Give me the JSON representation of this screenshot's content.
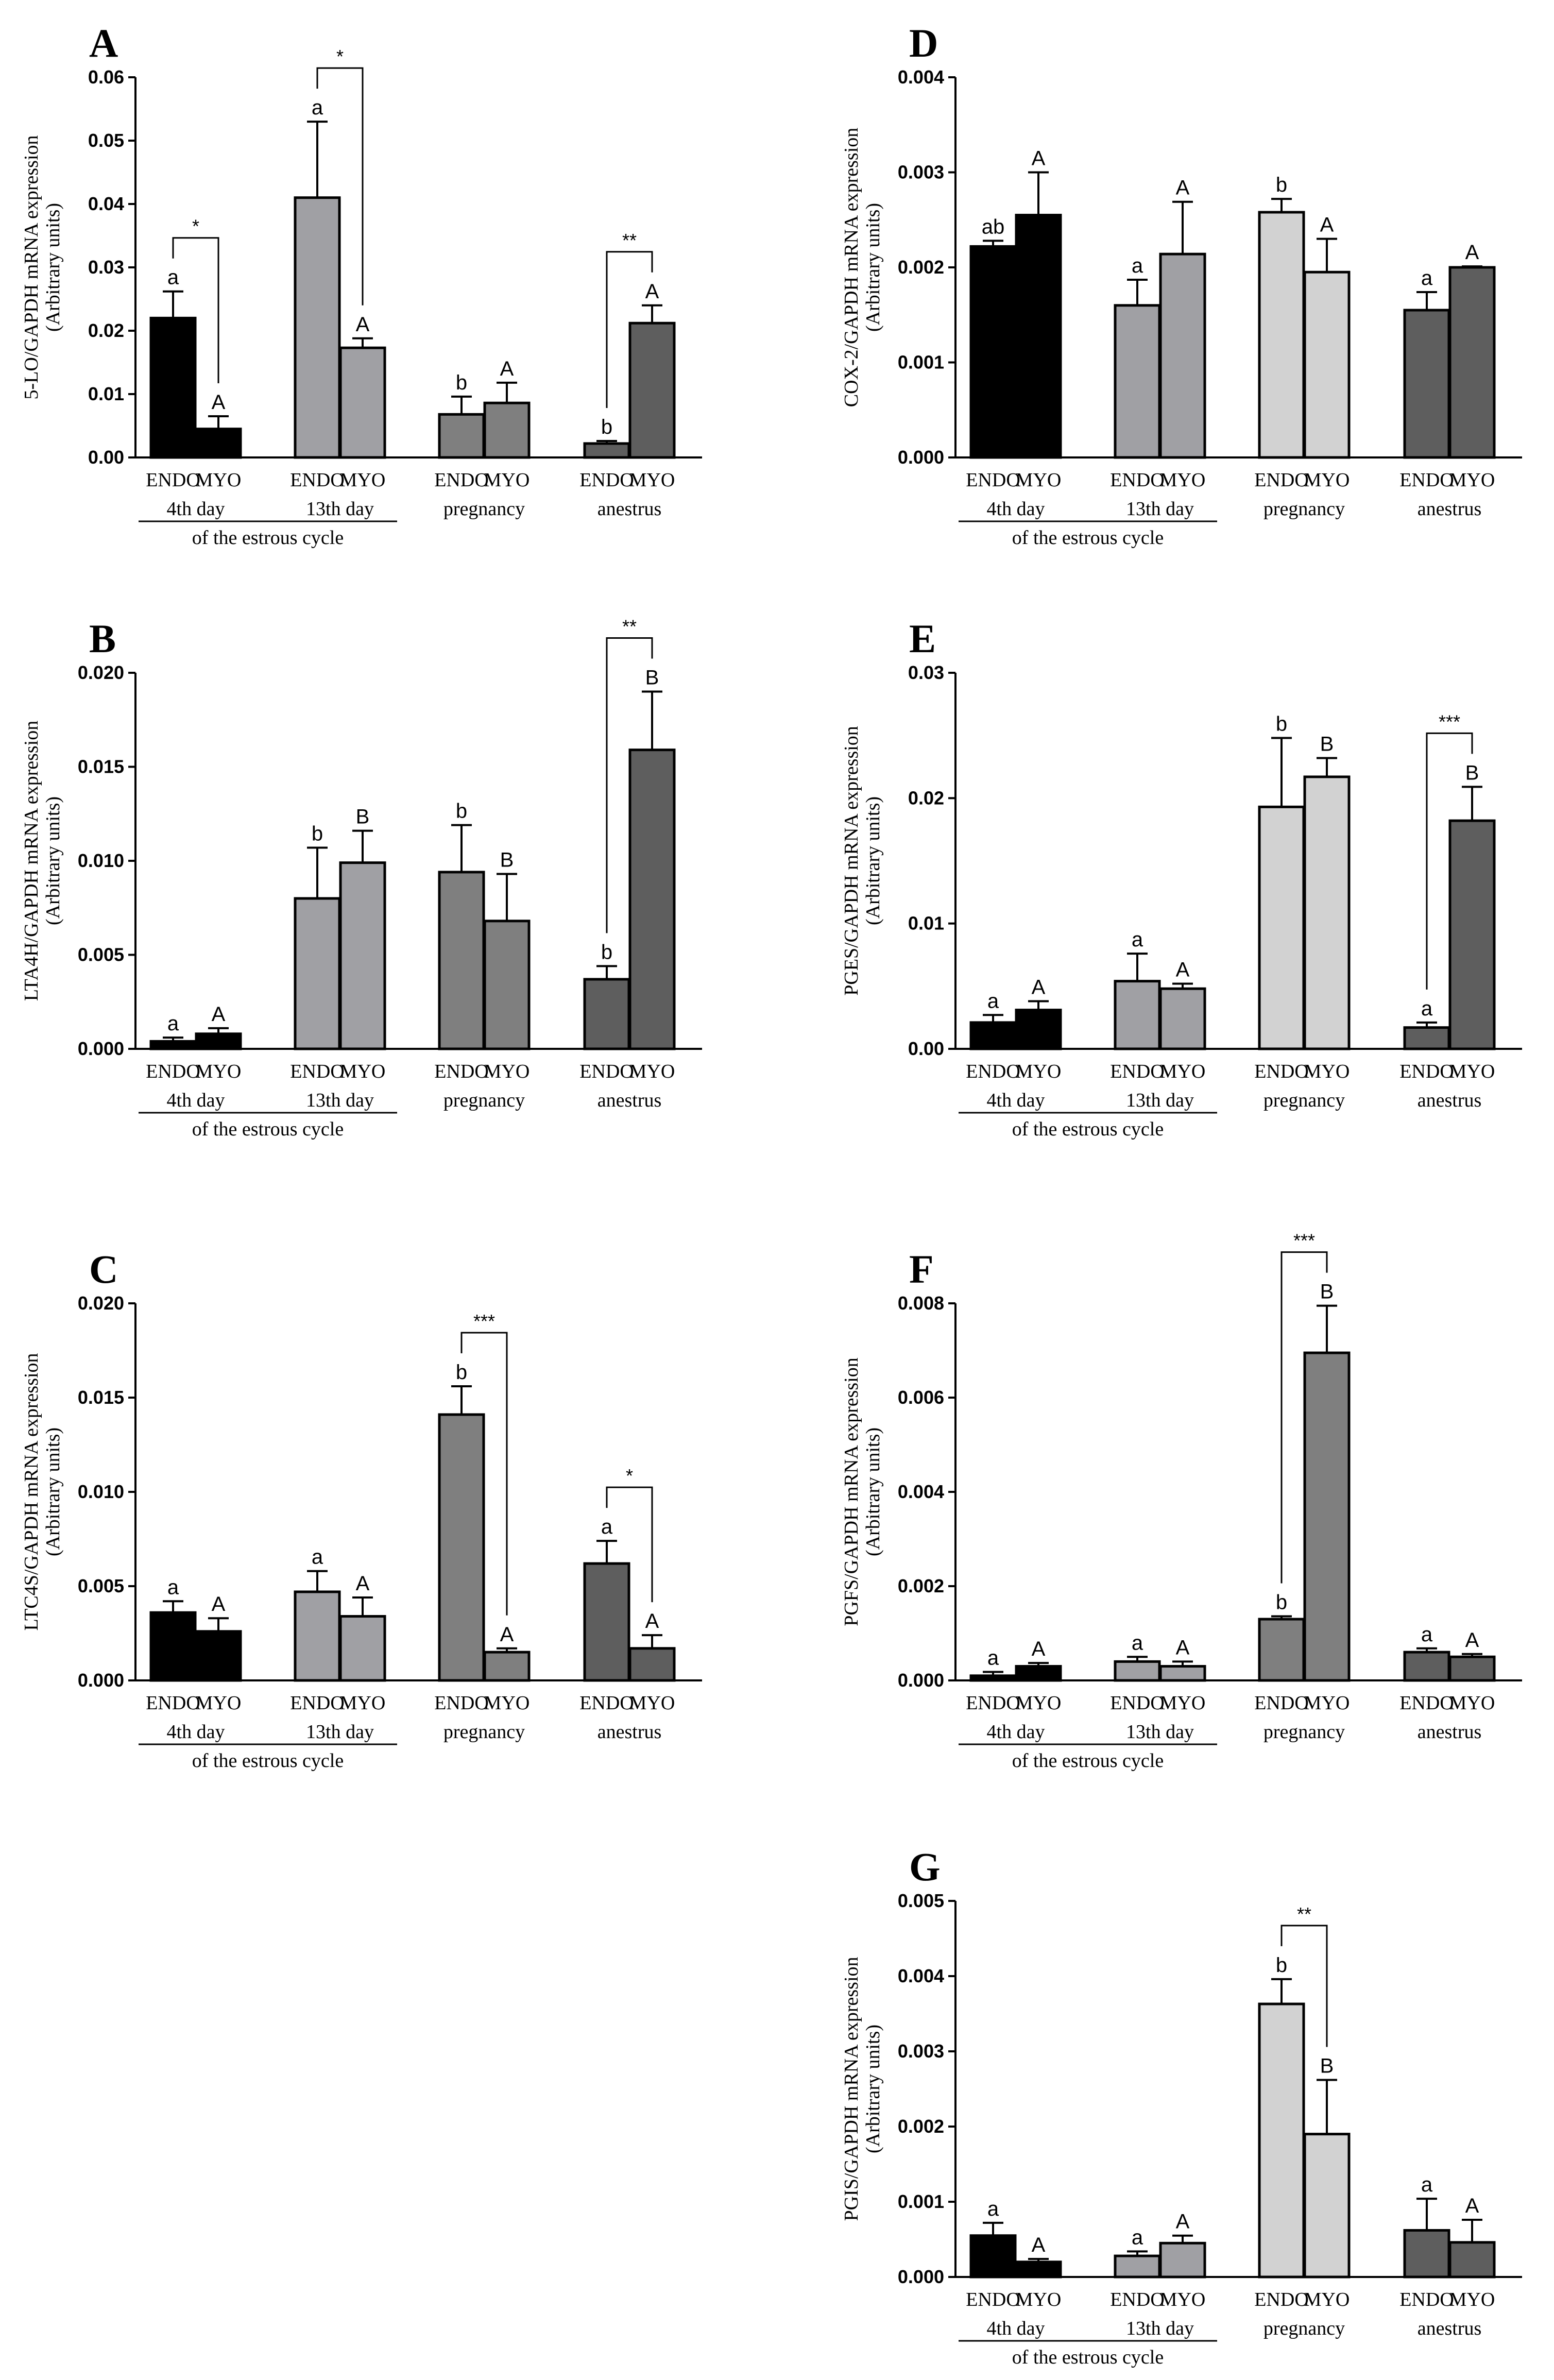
{
  "figure": {
    "colors": {
      "4th day": "#000000",
      "13th day": "#a0a0a4",
      "pregnancy": "#7f7f7f",
      "pregnancy_light": "#d2d2d2",
      "anestrus": "#5e5e5e"
    }
  },
  "chart_data": [
    {
      "panel": "A",
      "type": "bar",
      "ylabel": "5-LO/GAPDH mRNA expression",
      "ylabel2": "(Arbitrary units)",
      "yticks": [
        "0.00",
        "0.01",
        "0.02",
        "0.03",
        "0.04",
        "0.05",
        "0.06"
      ],
      "ylim": [
        0,
        0.06
      ],
      "categories": [
        "ENDO",
        "MYO",
        "ENDO",
        "MYO",
        "ENDO",
        "MYO",
        "ENDO",
        "MYO"
      ],
      "groups": [
        "4th day",
        "13th day",
        "pregnancy",
        "anestrus"
      ],
      "caption": "of the estrous cycle",
      "values": [
        0.022,
        0.0045,
        0.041,
        0.0173,
        0.0068,
        0.0086,
        0.0022,
        0.0212
      ],
      "errors": [
        0.0042,
        0.002,
        0.012,
        0.0015,
        0.0028,
        0.0032,
        0.0004,
        0.0028
      ],
      "letters": [
        "a",
        "A",
        "a",
        "A",
        "b",
        "A",
        "b",
        "A"
      ],
      "colors": [
        "#000000",
        "#000000",
        "#a0a0a4",
        "#a0a0a4",
        "#7f7f7f",
        "#7f7f7f",
        "#5e5e5e",
        "#5e5e5e"
      ],
      "brackets": [
        {
          "from": 0,
          "to": 1,
          "label": "*"
        },
        {
          "from": 2,
          "to": 3,
          "label": "*"
        },
        {
          "from": 6,
          "to": 7,
          "label": "**"
        }
      ]
    },
    {
      "panel": "B",
      "type": "bar",
      "ylabel": "LTA4H/GAPDH mRNA expression",
      "ylabel2": "(Arbitrary units)",
      "yticks": [
        "0.000",
        "0.005",
        "0.010",
        "0.015",
        "0.020"
      ],
      "ylim": [
        0,
        0.02
      ],
      "categories": [
        "ENDO",
        "MYO",
        "ENDO",
        "MYO",
        "ENDO",
        "MYO",
        "ENDO",
        "MYO"
      ],
      "groups": [
        "4th day",
        "13th day",
        "pregnancy",
        "anestrus"
      ],
      "caption": "of the estrous cycle",
      "values": [
        0.0004,
        0.0008,
        0.008,
        0.0099,
        0.0094,
        0.0068,
        0.0037,
        0.0159
      ],
      "errors": [
        0.0002,
        0.0003,
        0.0027,
        0.0017,
        0.0025,
        0.0025,
        0.0007,
        0.0031
      ],
      "letters": [
        "a",
        "A",
        "b",
        "B",
        "b",
        "B",
        "b",
        "B"
      ],
      "colors": [
        "#000000",
        "#000000",
        "#a0a0a4",
        "#a0a0a4",
        "#7f7f7f",
        "#7f7f7f",
        "#5e5e5e",
        "#5e5e5e"
      ],
      "brackets": [
        {
          "from": 6,
          "to": 7,
          "label": "**"
        }
      ]
    },
    {
      "panel": "C",
      "type": "bar",
      "ylabel": "LTC4S/GAPDH mRNA expression",
      "ylabel2": "(Arbitrary units)",
      "yticks": [
        "0.000",
        "0.005",
        "0.010",
        "0.015",
        "0.020"
      ],
      "ylim": [
        0,
        0.02
      ],
      "categories": [
        "ENDO",
        "MYO",
        "ENDO",
        "MYO",
        "ENDO",
        "MYO",
        "ENDO",
        "MYO"
      ],
      "groups": [
        "4th day",
        "13th day",
        "pregnancy",
        "anestrus"
      ],
      "caption": "of the estrous cycle",
      "values": [
        0.0036,
        0.0026,
        0.0047,
        0.0034,
        0.0141,
        0.0015,
        0.0062,
        0.0017
      ],
      "errors": [
        0.0006,
        0.0007,
        0.0011,
        0.001,
        0.0015,
        0.0002,
        0.0012,
        0.0007
      ],
      "letters": [
        "a",
        "A",
        "a",
        "A",
        "b",
        "A",
        "a",
        "A"
      ],
      "colors": [
        "#000000",
        "#000000",
        "#a0a0a4",
        "#a0a0a4",
        "#7f7f7f",
        "#7f7f7f",
        "#5e5e5e",
        "#5e5e5e"
      ],
      "brackets": [
        {
          "from": 4,
          "to": 5,
          "label": "***"
        },
        {
          "from": 6,
          "to": 7,
          "label": "*"
        }
      ]
    },
    {
      "panel": "D",
      "type": "bar",
      "ylabel": "COX-2/GAPDH mRNA expression",
      "ylabel2": "(Arbitrary units)",
      "yticks": [
        "0.000",
        "0.001",
        "0.002",
        "0.003",
        "0.004"
      ],
      "ylim": [
        0,
        0.004
      ],
      "categories": [
        "ENDO",
        "MYO",
        "ENDO",
        "MYO",
        "ENDO",
        "MYO",
        "ENDO",
        "MYO"
      ],
      "groups": [
        "4th day",
        "13th day",
        "pregnancy",
        "anestrus"
      ],
      "caption": "of the estrous cycle",
      "values": [
        0.00222,
        0.00255,
        0.0016,
        0.00214,
        0.00258,
        0.00195,
        0.00155,
        0.002
      ],
      "errors": [
        6e-05,
        0.00045,
        0.00027,
        0.00055,
        0.00014,
        0.00035,
        0.00019,
        1e-05
      ],
      "letters": [
        "ab",
        "A",
        "a",
        "A",
        "b",
        "A",
        "a",
        "A"
      ],
      "colors": [
        "#000000",
        "#000000",
        "#a0a0a4",
        "#a0a0a4",
        "#d2d2d2",
        "#d2d2d2",
        "#5e5e5e",
        "#5e5e5e"
      ],
      "brackets": []
    },
    {
      "panel": "E",
      "type": "bar",
      "ylabel": "PGES/GAPDH mRNA expression",
      "ylabel2": "(Arbitrary units)",
      "yticks": [
        "0.00",
        "0.01",
        "0.02",
        "0.03"
      ],
      "ylim": [
        0,
        0.03
      ],
      "categories": [
        "ENDO",
        "MYO",
        "ENDO",
        "MYO",
        "ENDO",
        "MYO",
        "ENDO",
        "MYO"
      ],
      "groups": [
        "4th day",
        "13th day",
        "pregnancy",
        "anestrus"
      ],
      "caption": "of the estrous cycle",
      "values": [
        0.0021,
        0.0031,
        0.0054,
        0.0048,
        0.0193,
        0.0217,
        0.0017,
        0.0182
      ],
      "errors": [
        0.0006,
        0.0007,
        0.0022,
        0.0004,
        0.0055,
        0.0015,
        0.0004,
        0.0027
      ],
      "letters": [
        "a",
        "A",
        "a",
        "A",
        "b",
        "B",
        "a",
        "B"
      ],
      "colors": [
        "#000000",
        "#000000",
        "#a0a0a4",
        "#a0a0a4",
        "#d2d2d2",
        "#d2d2d2",
        "#5e5e5e",
        "#5e5e5e"
      ],
      "brackets": [
        {
          "from": 6,
          "to": 7,
          "label": "***"
        }
      ]
    },
    {
      "panel": "F",
      "type": "bar",
      "ylabel": "PGFS/GAPDH mRNA expression",
      "ylabel2": "(Arbitrary units)",
      "yticks": [
        "0.000",
        "0.002",
        "0.004",
        "0.006",
        "0.008"
      ],
      "ylim": [
        0,
        0.008
      ],
      "categories": [
        "ENDO",
        "MYO",
        "ENDO",
        "MYO",
        "ENDO",
        "MYO",
        "ENDO",
        "MYO"
      ],
      "groups": [
        "4th day",
        "13th day",
        "pregnancy",
        "anestrus"
      ],
      "caption": "of the estrous cycle",
      "values": [
        0.0001,
        0.0003,
        0.0004,
        0.0003,
        0.0013,
        0.00695,
        0.0006,
        0.0005
      ],
      "errors": [
        8e-05,
        7e-05,
        0.0001,
        0.0001,
        6e-05,
        0.001,
        8e-05,
        6e-05
      ],
      "letters": [
        "a",
        "A",
        "a",
        "A",
        "b",
        "B",
        "a",
        "A"
      ],
      "colors": [
        "#000000",
        "#000000",
        "#a0a0a4",
        "#a0a0a4",
        "#7f7f7f",
        "#7f7f7f",
        "#5e5e5e",
        "#5e5e5e"
      ],
      "brackets": [
        {
          "from": 4,
          "to": 5,
          "label": "***"
        }
      ]
    },
    {
      "panel": "G",
      "type": "bar",
      "ylabel": "PGIS/GAPDH mRNA expression",
      "ylabel2": "(Arbitrary units)",
      "yticks": [
        "0.000",
        "0.001",
        "0.002",
        "0.003",
        "0.004",
        "0.005"
      ],
      "ylim": [
        0,
        0.005
      ],
      "categories": [
        "ENDO",
        "MYO",
        "ENDO",
        "MYO",
        "ENDO",
        "MYO",
        "ENDO",
        "MYO"
      ],
      "groups": [
        "4th day",
        "13th day",
        "pregnancy",
        "anestrus"
      ],
      "caption": "of the estrous cycle",
      "values": [
        0.00055,
        0.0002,
        0.00028,
        0.00045,
        0.00363,
        0.0019,
        0.00062,
        0.00046
      ],
      "errors": [
        0.00017,
        4e-05,
        6e-05,
        0.0001,
        0.00033,
        0.00072,
        0.00042,
        0.0003
      ],
      "letters": [
        "a",
        "A",
        "a",
        "A",
        "b",
        "B",
        "a",
        "A"
      ],
      "colors": [
        "#000000",
        "#000000",
        "#a0a0a4",
        "#a0a0a4",
        "#d2d2d2",
        "#d2d2d2",
        "#5e5e5e",
        "#5e5e5e"
      ],
      "brackets": [
        {
          "from": 4,
          "to": 5,
          "label": "**"
        }
      ]
    }
  ]
}
